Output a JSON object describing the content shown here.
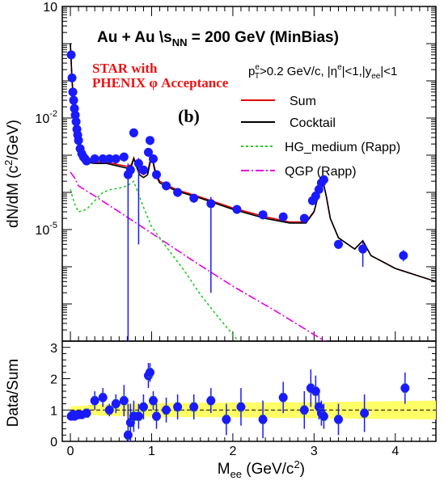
{
  "chart_data": [
    {
      "panel": "top",
      "type": "scatter",
      "title": "Au + Au \\s_NN = 200 GeV (MinBias)",
      "title_parts": {
        "main": "Au + Au  \\s",
        "sub": "NN",
        "rest": " = 200 GeV (MinBias)"
      },
      "experiment_label": [
        "STAR with",
        "PHENIX  φ Acceptance"
      ],
      "panel_label": "(b)",
      "cuts_parts": {
        "p": "p",
        "sup1": "e",
        "sub1": "T",
        "mid": ">0.2 GeV/c, |η",
        "sup2": "e",
        "mid2": "|<1,|y",
        "sub2": "ee",
        "end": "|<1"
      },
      "ylabel": "dN/dM (c²/GeV)",
      "ylabel_parts": {
        "pre": "dN/dM (c",
        "sup": "2",
        "post": "/GeV)"
      },
      "yscale": "log",
      "ylim": [
        1e-08,
        10
      ],
      "xlim": [
        -0.1,
        4.5
      ],
      "y_ticks": [
        {
          "value": 10,
          "label": "10"
        },
        {
          "value": 0.01,
          "label_base": "10",
          "label_exp": "-2"
        },
        {
          "value": 1e-05,
          "label_base": "10",
          "label_exp": "-5"
        }
      ],
      "legend": [
        {
          "label": "Sum",
          "color": "#dd0000",
          "style": "solid"
        },
        {
          "label": "Cocktail",
          "color": "#000000",
          "style": "solid"
        },
        {
          "label": "HG_medium (Rapp)",
          "color": "#22cc22",
          "style": "dotted"
        },
        {
          "label": "QGP (Rapp)",
          "color": "#e600e6",
          "style": "dashdot"
        }
      ],
      "data_points": {
        "x": [
          0.01,
          0.02,
          0.03,
          0.04,
          0.05,
          0.06,
          0.07,
          0.08,
          0.09,
          0.1,
          0.12,
          0.14,
          0.16,
          0.18,
          0.2,
          0.3,
          0.4,
          0.48,
          0.56,
          0.66,
          0.71,
          0.74,
          0.78,
          0.84,
          0.9,
          0.96,
          0.98,
          1.02,
          1.06,
          1.18,
          1.32,
          1.52,
          1.73,
          2.05,
          2.37,
          2.62,
          2.88,
          2.98,
          3.02,
          3.06,
          3.09,
          3.12,
          3.3,
          3.6,
          4.1
        ],
        "y": [
          0.5,
          0.12,
          0.05,
          0.03,
          0.018,
          0.012,
          0.008,
          0.005,
          0.0035,
          0.0025,
          0.0015,
          0.0011,
          0.0009,
          0.0008,
          0.0007,
          0.0008,
          0.0008,
          0.0008,
          0.0008,
          0.0009,
          0.0003,
          0.0004,
          0.004,
          0.0006,
          0.0004,
          0.0012,
          0.0025,
          0.0008,
          0.0003,
          0.00015,
          0.0001,
          7e-05,
          5e-05,
          3.5e-05,
          2.5e-05,
          2.2e-05,
          2e-05,
          6e-05,
          8e-05,
          0.00012,
          0.00018,
          0.00022,
          4e-06,
          3e-06,
          2e-06
        ],
        "color": "#1a1aff"
      },
      "curves": {
        "x": [
          0.0,
          0.02,
          0.05,
          0.1,
          0.15,
          0.2,
          0.3,
          0.45,
          0.6,
          0.7,
          0.75,
          0.78,
          0.8,
          0.85,
          0.9,
          0.95,
          1.0,
          1.02,
          1.05,
          1.1,
          1.3,
          1.6,
          2.0,
          2.4,
          2.7,
          2.9,
          3.0,
          3.05,
          3.1,
          3.15,
          3.2,
          3.3,
          3.5,
          3.6,
          3.7,
          4.0,
          4.5
        ],
        "cocktail": [
          1.0,
          0.1,
          0.015,
          0.0018,
          0.0008,
          0.00065,
          0.0006,
          0.0006,
          0.0005,
          0.00045,
          0.0005,
          0.0008,
          0.0006,
          0.0003,
          0.00025,
          0.0003,
          0.001,
          0.0006,
          0.0003,
          0.00018,
          0.00011,
          7e-05,
          3.5e-05,
          2e-05,
          1.5e-05,
          1.5e-05,
          3e-05,
          8e-05,
          0.00025,
          8e-05,
          2e-05,
          6e-06,
          3e-06,
          5e-06,
          2e-06,
          9e-07,
          4e-07
        ],
        "sum": [
          1.0,
          0.1,
          0.015,
          0.0018,
          0.00085,
          0.0007,
          0.00065,
          0.00065,
          0.00055,
          0.0005,
          0.00055,
          0.00085,
          0.00065,
          0.00035,
          0.0003,
          0.00035,
          0.0011,
          0.00065,
          0.00035,
          0.0002,
          0.00012,
          7.5e-05,
          3.8e-05,
          2.2e-05,
          1.6e-05,
          1.6e-05,
          3.1e-05,
          8e-05,
          0.00025,
          8e-05,
          2e-05,
          6e-06,
          3e-06,
          5e-06,
          2e-06,
          9e-07,
          4e-07
        ],
        "hg_x": [
          0.0,
          0.05,
          0.1,
          0.2,
          0.3,
          0.4,
          0.5,
          0.6,
          0.7,
          0.75,
          0.78,
          0.8,
          0.9,
          1.0,
          1.2,
          1.4,
          1.6,
          1.8,
          2.0,
          2.15
        ],
        "hg": [
          0.00012,
          5e-05,
          3e-05,
          3.5e-05,
          6e-05,
          0.0001,
          0.00012,
          0.00013,
          0.00015,
          0.00018,
          0.0002,
          0.00015,
          4e-05,
          1.2e-05,
          3e-06,
          8e-07,
          1.8e-07,
          5e-08,
          1.5e-08,
          6e-09
        ],
        "qgp_x": [
          0.0,
          0.05,
          0.1,
          0.3,
          0.6,
          1.0,
          1.5,
          2.0,
          2.5,
          3.0,
          3.25
        ],
        "qgp": [
          0.00035,
          0.00025,
          0.00015,
          8e-05,
          3e-05,
          8e-06,
          1.5e-06,
          3e-07,
          7e-08,
          1.5e-08,
          7e-09
        ]
      }
    },
    {
      "panel": "bottom",
      "type": "scatter",
      "ylabel": "Data/Sum",
      "xlabel": "M_ee (GeV/c²)",
      "xlabel_parts": {
        "pre": "M",
        "sub": "ee",
        "post": " (GeV/c",
        "sup": "2",
        "end": ")"
      },
      "xlim": [
        -0.1,
        4.5
      ],
      "ylim": [
        0,
        3.2
      ],
      "x_ticks": [
        0,
        1,
        2,
        3,
        4
      ],
      "y_ticks": [
        0,
        1,
        2,
        3
      ],
      "band_color": "#ffff66",
      "data_points": {
        "x": [
          0.01,
          0.03,
          0.05,
          0.07,
          0.1,
          0.14,
          0.2,
          0.3,
          0.4,
          0.48,
          0.56,
          0.66,
          0.71,
          0.74,
          0.78,
          0.84,
          0.9,
          0.96,
          0.98,
          1.02,
          1.06,
          1.18,
          1.32,
          1.52,
          1.73,
          1.92,
          2.1,
          2.37,
          2.62,
          2.88,
          2.96,
          3.02,
          3.06,
          3.09,
          3.12,
          3.3,
          3.62,
          4.12
        ],
        "y": [
          0.8,
          0.85,
          0.8,
          0.85,
          0.85,
          0.85,
          0.9,
          1.3,
          1.4,
          1.0,
          1.2,
          1.3,
          0.2,
          0.6,
          0.8,
          0.8,
          1.1,
          2.1,
          2.2,
          1.3,
          0.8,
          1.0,
          1.1,
          1.1,
          1.3,
          0.7,
          1.1,
          0.7,
          1.4,
          1.0,
          1.7,
          1.6,
          1.1,
          0.9,
          0.8,
          0.7,
          0.9,
          1.7
        ],
        "err": [
          0.05,
          0.05,
          0.05,
          0.05,
          0.05,
          0.05,
          0.1,
          0.3,
          0.3,
          0.2,
          0.3,
          0.5,
          1.0,
          0.6,
          0.5,
          0.4,
          0.4,
          0.4,
          0.3,
          0.3,
          0.4,
          0.4,
          0.4,
          0.4,
          0.4,
          0.5,
          0.6,
          0.6,
          0.5,
          0.6,
          0.6,
          0.5,
          0.4,
          0.4,
          0.4,
          0.5,
          0.6,
          0.5
        ]
      }
    }
  ]
}
